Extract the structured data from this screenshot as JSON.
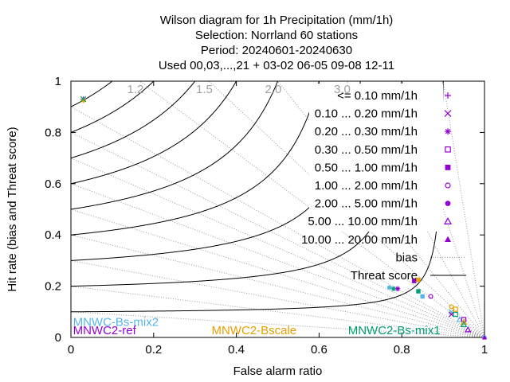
{
  "chart_data": {
    "type": "scatter",
    "title_lines": [
      "Wilson diagram  for 1h Precipitation (mm/1h)",
      "Selection: Norrland     60 stations",
      "Period: 20240601-20240630",
      "Used 00,03,...,21 + 03-02 06-05 09-08 12-11"
    ],
    "xlabel": "False alarm ratio",
    "ylabel": "Hit rate (bias and Threat score)",
    "xlim": [
      0,
      1
    ],
    "ylim": [
      0,
      1
    ],
    "x_ticks": [
      {
        "v": 0,
        "label": "0"
      },
      {
        "v": 0.2,
        "label": "0.2"
      },
      {
        "v": 0.4,
        "label": "0.4"
      },
      {
        "v": 0.6,
        "label": "0.6"
      },
      {
        "v": 0.8,
        "label": "0.8"
      },
      {
        "v": 1,
        "label": "1"
      }
    ],
    "y_ticks": [
      {
        "v": 0,
        "label": "0"
      },
      {
        "v": 0.2,
        "label": "0.2"
      },
      {
        "v": 0.4,
        "label": "0.4"
      },
      {
        "v": 0.6,
        "label": "0.6"
      },
      {
        "v": 0.8,
        "label": "0.8"
      },
      {
        "v": 1,
        "label": "1"
      }
    ],
    "bias_lines": [
      0.1,
      0.2,
      0.3,
      0.4,
      0.5,
      0.6,
      0.7,
      0.8,
      0.9,
      1.2,
      1.5,
      2.0,
      3.0,
      5.0,
      10.0
    ],
    "bias_labels": [
      {
        "b": 1.2,
        "label": "1.2"
      },
      {
        "b": 1.5,
        "label": "1.5"
      },
      {
        "b": 2.0,
        "label": "2.0"
      },
      {
        "b": 3.0,
        "label": "3.0"
      }
    ],
    "threat_levels": [
      0.1,
      0.2,
      0.3,
      0.4,
      0.5,
      0.6,
      0.7,
      0.8,
      0.9
    ],
    "legend_position": "top-right",
    "legend": [
      {
        "label": "<= 0.10 mm/1h",
        "marker": "plus"
      },
      {
        "label": "0.10 ... 0.20 mm/1h",
        "marker": "cross"
      },
      {
        "label": "0.20 ... 0.30 mm/1h",
        "marker": "star"
      },
      {
        "label": "0.30 ... 0.50 mm/1h",
        "marker": "square-open"
      },
      {
        "label": "0.50 ... 1.00 mm/1h",
        "marker": "square"
      },
      {
        "label": "1.00 ... 2.00 mm/1h",
        "marker": "circle-open"
      },
      {
        "label": "2.00 ... 5.00 mm/1h",
        "marker": "circle"
      },
      {
        "label": "5.00 ... 10.00 mm/1h",
        "marker": "triangle-open"
      },
      {
        "label": "10.00 ... 20.00 mm/1h",
        "marker": "triangle"
      },
      {
        "label": "bias",
        "line": "dotted"
      },
      {
        "label": "Threat score",
        "line": "solid"
      }
    ],
    "series": [
      {
        "name": "MNWC-Bs-mix2",
        "color": "#56b4e9",
        "points": [
          {
            "x": 0.03,
            "y": 0.93,
            "m": "star"
          },
          {
            "x": 0.77,
            "y": 0.195,
            "m": "circle"
          },
          {
            "x": 0.85,
            "y": 0.16,
            "m": "square"
          },
          {
            "x": 0.92,
            "y": 0.1,
            "m": "cross"
          },
          {
            "x": 0.94,
            "y": 0.07,
            "m": "triangle-open"
          },
          {
            "x": 1.0,
            "y": 0.0,
            "m": "circle"
          }
        ]
      },
      {
        "name": "MNWC2-ref",
        "color": "#9400d3",
        "points": [
          {
            "x": 0.03,
            "y": 0.93,
            "m": "plus"
          },
          {
            "x": 0.79,
            "y": 0.19,
            "m": "star"
          },
          {
            "x": 0.83,
            "y": 0.22,
            "m": "square"
          },
          {
            "x": 0.87,
            "y": 0.16,
            "m": "circle-open"
          },
          {
            "x": 0.92,
            "y": 0.09,
            "m": "cross"
          },
          {
            "x": 0.95,
            "y": 0.07,
            "m": "square-open"
          },
          {
            "x": 0.96,
            "y": 0.03,
            "m": "triangle-open"
          },
          {
            "x": 1.0,
            "y": 0.0,
            "m": "triangle"
          }
        ]
      },
      {
        "name": "MNWC2-Bscale",
        "color": "#e69f00",
        "points": [
          {
            "x": 0.03,
            "y": 0.925,
            "m": "star"
          },
          {
            "x": 0.84,
            "y": 0.225,
            "m": "square"
          },
          {
            "x": 0.92,
            "y": 0.12,
            "m": "circle-open"
          },
          {
            "x": 0.93,
            "y": 0.11,
            "m": "square-open"
          },
          {
            "x": 0.95,
            "y": 0.06,
            "m": "triangle-open"
          }
        ]
      },
      {
        "name": "MNWC2-Bs-mix1",
        "color": "#009e73",
        "points": [
          {
            "x": 0.03,
            "y": 0.93,
            "m": "cross"
          },
          {
            "x": 0.78,
            "y": 0.19,
            "m": "star"
          },
          {
            "x": 0.84,
            "y": 0.18,
            "m": "square"
          },
          {
            "x": 0.93,
            "y": 0.09,
            "m": "square-open"
          },
          {
            "x": 0.95,
            "y": 0.05,
            "m": "triangle-open"
          }
        ]
      }
    ],
    "series_labels": [
      {
        "name": "MNWC-Bs-mix2",
        "x": 0.005,
        "y": 0.045
      },
      {
        "name": "MNWC2-ref",
        "x": 0.005,
        "y": 0.012
      },
      {
        "name": "MNWC2-Bscale",
        "x": 0.34,
        "y": 0.012
      },
      {
        "name": "MNWC2-Bs-mix1",
        "x": 0.67,
        "y": 0.012
      }
    ],
    "grid": false
  }
}
